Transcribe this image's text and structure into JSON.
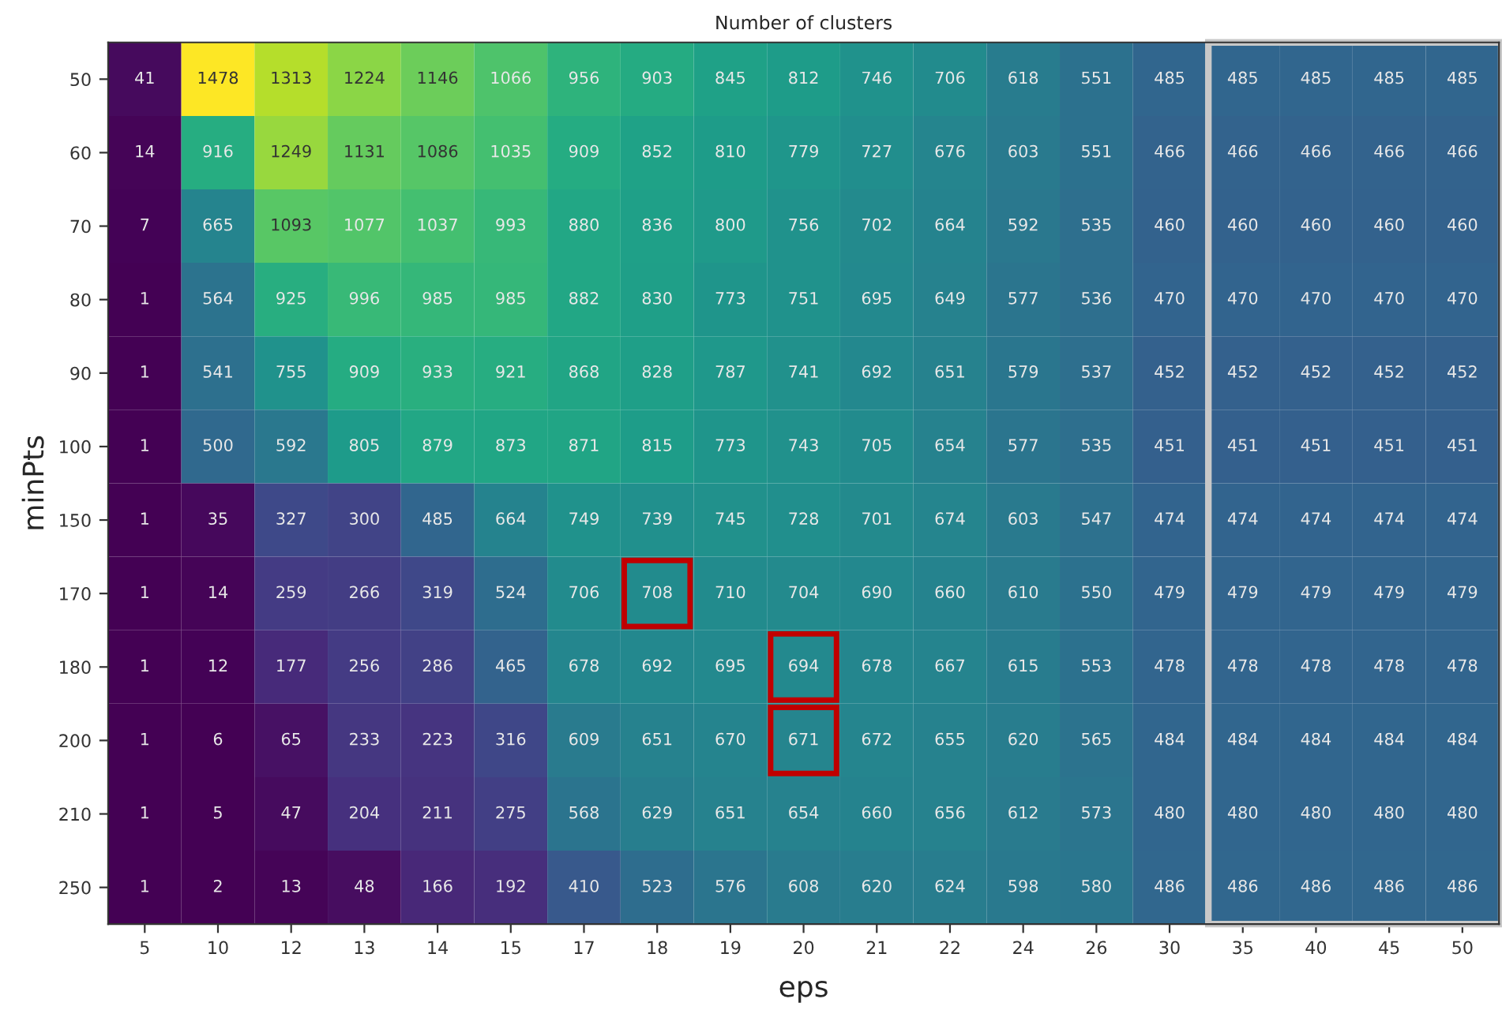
{
  "chart_data": {
    "type": "heatmap",
    "title": "Number of clusters",
    "xlabel": "eps",
    "ylabel": "minPts",
    "categories": [
      "5",
      "10",
      "12",
      "13",
      "14",
      "15",
      "17",
      "18",
      "19",
      "20",
      "21",
      "22",
      "24",
      "26",
      "30",
      "35",
      "40",
      "45",
      "50"
    ],
    "y_categories": [
      "50",
      "60",
      "70",
      "80",
      "90",
      "100",
      "150",
      "170",
      "180",
      "200",
      "210",
      "250"
    ],
    "cells": [
      [
        41,
        1478,
        1313,
        1224,
        1146,
        1066,
        956,
        903,
        845,
        812,
        746,
        706,
        618,
        551,
        485,
        485,
        485,
        485,
        485
      ],
      [
        14,
        916,
        1249,
        1131,
        1086,
        1035,
        909,
        852,
        810,
        779,
        727,
        676,
        603,
        551,
        466,
        466,
        466,
        466,
        466
      ],
      [
        7,
        665,
        1093,
        1077,
        1037,
        993,
        880,
        836,
        800,
        756,
        702,
        664,
        592,
        535,
        460,
        460,
        460,
        460,
        460
      ],
      [
        1,
        564,
        925,
        996,
        985,
        985,
        882,
        830,
        773,
        751,
        695,
        649,
        577,
        536,
        470,
        470,
        470,
        470,
        470
      ],
      [
        1,
        541,
        755,
        909,
        933,
        921,
        868,
        828,
        787,
        741,
        692,
        651,
        579,
        537,
        452,
        452,
        452,
        452,
        452
      ],
      [
        1,
        500,
        592,
        805,
        879,
        873,
        871,
        815,
        773,
        743,
        705,
        654,
        577,
        535,
        451,
        451,
        451,
        451,
        451
      ],
      [
        1,
        35,
        327,
        300,
        485,
        664,
        749,
        739,
        745,
        728,
        701,
        674,
        603,
        547,
        474,
        474,
        474,
        474,
        474
      ],
      [
        1,
        14,
        259,
        266,
        319,
        524,
        706,
        708,
        710,
        704,
        690,
        660,
        610,
        550,
        479,
        479,
        479,
        479,
        479
      ],
      [
        1,
        12,
        177,
        256,
        286,
        465,
        678,
        692,
        695,
        694,
        678,
        667,
        615,
        553,
        478,
        478,
        478,
        478,
        478
      ],
      [
        1,
        6,
        65,
        233,
        223,
        316,
        609,
        651,
        670,
        671,
        672,
        655,
        620,
        565,
        484,
        484,
        484,
        484,
        484
      ],
      [
        1,
        5,
        47,
        204,
        211,
        275,
        568,
        629,
        651,
        654,
        660,
        656,
        612,
        573,
        480,
        480,
        480,
        480,
        480
      ],
      [
        1,
        2,
        13,
        48,
        166,
        192,
        410,
        523,
        576,
        608,
        620,
        624,
        598,
        580,
        486,
        486,
        486,
        486,
        486
      ]
    ],
    "data_labels": true
  }
}
